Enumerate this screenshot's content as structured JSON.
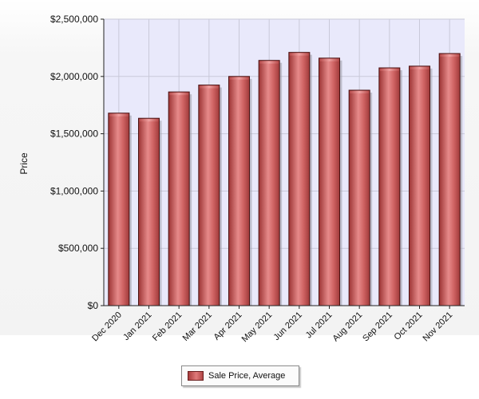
{
  "chart_data": {
    "type": "bar",
    "categories": [
      "Dec 2020",
      "Jan 2021",
      "Feb 2021",
      "Mar 2021",
      "Apr 2021",
      "May 2021",
      "Jun 2021",
      "Jul 2021",
      "Aug 2021",
      "Sep 2021",
      "Oct 2021",
      "Nov 2021"
    ],
    "series": [
      {
        "name": "Sale Price, Average",
        "values": [
          1680000,
          1635000,
          1865000,
          1925000,
          2000000,
          2140000,
          2210000,
          2160000,
          1880000,
          2075000,
          2090000,
          2200000
        ]
      }
    ],
    "ylabel": "Price",
    "xlabel": "",
    "ylim": [
      0,
      2500000
    ],
    "yticks": [
      0,
      500000,
      1000000,
      1500000,
      2000000,
      2500000
    ],
    "ytick_labels": [
      "$0",
      "$500,000",
      "$1,000,000",
      "$1,500,000",
      "$2,000,000",
      "$2,500,000"
    ],
    "grid": true,
    "legend_position": "bottom-center",
    "colors": {
      "bar": "#c04a4a",
      "bar_edge": "#4a1212",
      "plot_bg": "#e9e9fb",
      "grid": "#c9c9d9"
    }
  }
}
